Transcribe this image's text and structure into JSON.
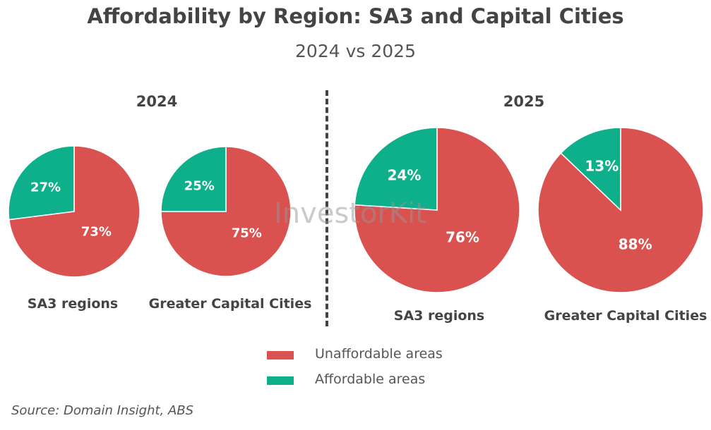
{
  "title": "Affordability by Region: SA3 and Capital Cities",
  "subtitle": "2024 vs 2025",
  "watermark": "InvestorKit",
  "colors": {
    "unaffordable": "#DA524F",
    "affordable": "#0DB08A"
  },
  "chart_data": [
    {
      "type": "pie",
      "panel": "2024",
      "label": "SA3 regions",
      "slices": [
        {
          "name": "Unaffordable areas",
          "value": 73,
          "label": "73%"
        },
        {
          "name": "Affordable areas",
          "value": 27,
          "label": "27%"
        }
      ]
    },
    {
      "type": "pie",
      "panel": "2024",
      "label": "Greater Capital Cities",
      "slices": [
        {
          "name": "Unaffordable areas",
          "value": 75,
          "label": "75%"
        },
        {
          "name": "Affordable areas",
          "value": 25,
          "label": "25%"
        }
      ]
    },
    {
      "type": "pie",
      "panel": "2025",
      "label": "SA3 regions",
      "slices": [
        {
          "name": "Unaffordable areas",
          "value": 76,
          "label": "76%"
        },
        {
          "name": "Affordable areas",
          "value": 24,
          "label": "24%"
        }
      ]
    },
    {
      "type": "pie",
      "panel": "2025",
      "label": "Greater Capital Cities",
      "slices": [
        {
          "name": "Unaffordable areas",
          "value": 88,
          "label": "88%"
        },
        {
          "name": "Affordable areas",
          "value": 13,
          "label": "13%"
        }
      ]
    }
  ],
  "panels": [
    "2024",
    "2025"
  ],
  "legend": [
    "Unaffordable areas",
    "Affordable areas"
  ],
  "source": "Source: Domain Insight, ABS"
}
